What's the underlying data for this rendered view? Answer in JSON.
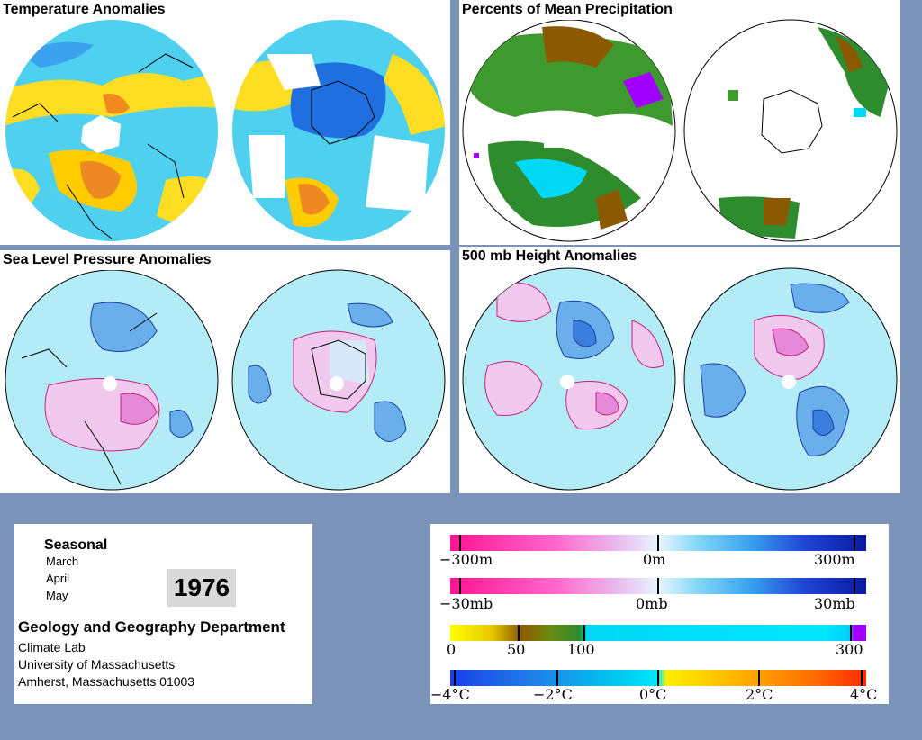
{
  "panels": {
    "temperature": {
      "title": "Temperature Anomalies"
    },
    "precipitation": {
      "title": "Percents of Mean Precipitation"
    },
    "pressure": {
      "title": "Sea Level Pressure Anomalies"
    },
    "height": {
      "title": "500 mb Height Anomalies"
    }
  },
  "info": {
    "season": "Seasonal",
    "months": [
      "March",
      "April",
      "May"
    ],
    "year": "1976",
    "department": "Geology and Geography Department",
    "lines": [
      "Climate Lab",
      "University of Massachusetts",
      "Amherst, Massachusetts 01003"
    ]
  },
  "legends": {
    "height": [
      "−300m",
      "0m",
      "300m"
    ],
    "pressure": [
      "−30mb",
      "0mb",
      "30mb"
    ],
    "precip": [
      "0",
      "50",
      "100",
      "300"
    ],
    "temp": [
      "−4°C",
      "−2°C",
      "0°C",
      "2°C",
      "4°C"
    ]
  },
  "colors": {
    "background": "#7b93b8",
    "anomaly_scale": [
      "#ff1493",
      "#ff66cc",
      "#e9b9ee",
      "#e8f6ff",
      "#7fd6f7",
      "#3aa2ee",
      "#1f46d6",
      "#0a1aa0"
    ],
    "precip_scale": [
      "#ffff00",
      "#8b5a00",
      "#2e8b2e",
      "#00e6ff",
      "#a000ff"
    ],
    "temp_scale": [
      "#1a3fe6",
      "#00c8ee",
      "#00e6ff",
      "#ffee00",
      "#ff4400"
    ]
  }
}
